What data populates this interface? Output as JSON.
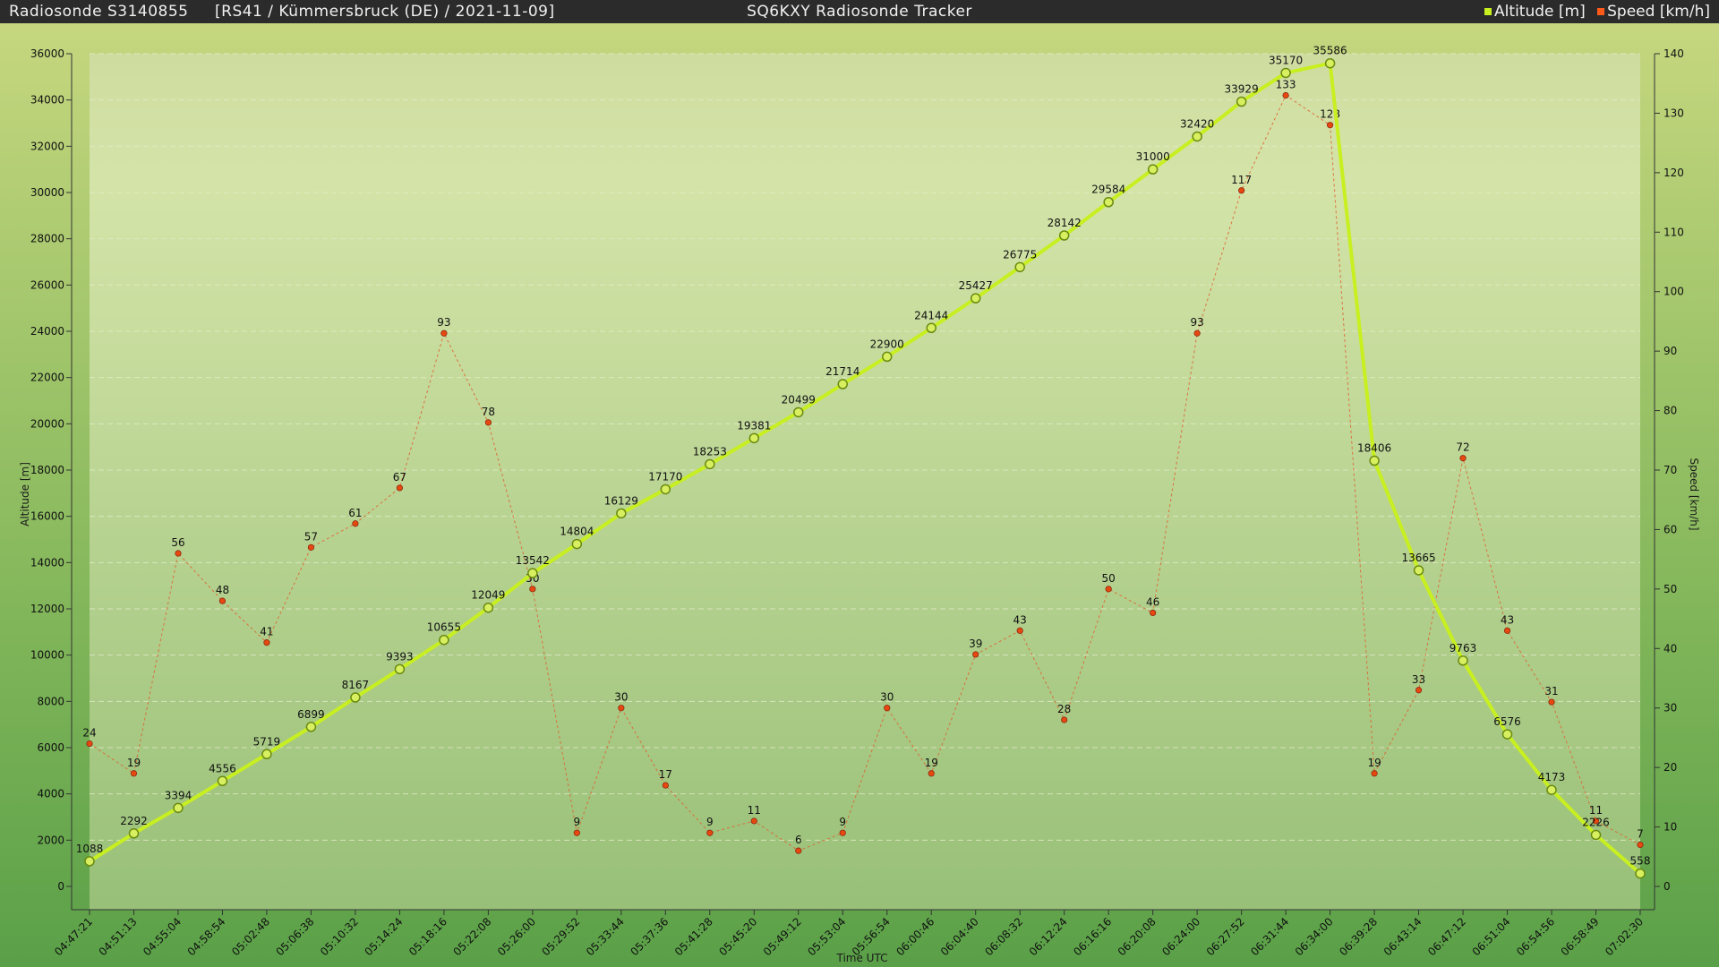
{
  "header": {
    "left": "Radiosonde S3140855",
    "info": "[RS41 / Kümmersbruck (DE) / 2021-11-09]",
    "center": "SQ6KXY Radiosonde Tracker",
    "legend_altitude": "Altitude [m]",
    "legend_speed": "Speed [km/h]"
  },
  "colors": {
    "altitude": "#c8ef20",
    "altitude_marker": "#a8d418",
    "speed": "#e06030",
    "speed_marker": "#e84810"
  },
  "chart_data": {
    "type": "line",
    "title": "SQ6KXY Radiosonde Tracker",
    "xlabel": "Time UTC",
    "ylabel": "Altitude [m]",
    "y2label": "Speed [km/h]",
    "ylim": [
      0,
      36000
    ],
    "y2lim": [
      0,
      140
    ],
    "yticks": [
      0,
      2000,
      4000,
      6000,
      8000,
      10000,
      12000,
      14000,
      16000,
      18000,
      20000,
      22000,
      24000,
      26000,
      28000,
      30000,
      32000,
      34000,
      36000
    ],
    "y2ticks": [
      0,
      10,
      20,
      30,
      40,
      50,
      60,
      70,
      80,
      90,
      100,
      110,
      120,
      130,
      140
    ],
    "grid": true,
    "legend": "top-right",
    "x": [
      "04:47:21",
      "04:51:13",
      "04:55:04",
      "04:58:54",
      "05:02:48",
      "05:06:38",
      "05:10:32",
      "05:14:24",
      "05:18:16",
      "05:22:08",
      "05:26:00",
      "05:29:52",
      "05:33:44",
      "05:37:36",
      "05:41:28",
      "05:45:20",
      "05:49:12",
      "05:53:04",
      "05:56:54",
      "06:00:46",
      "06:04:40",
      "06:08:32",
      "06:12:24",
      "06:16:16",
      "06:20:08",
      "06:24:00",
      "06:27:52",
      "06:31:44",
      "06:34:00",
      "06:39:28",
      "06:43:14",
      "06:47:12",
      "06:51:04",
      "06:54:56",
      "06:58:49",
      "07:02:30"
    ],
    "series": [
      {
        "name": "Altitude [m]",
        "axis": "left",
        "values": [
          1088,
          2292,
          3394,
          4556,
          5719,
          6899,
          8167,
          9393,
          10655,
          12049,
          13542,
          14804,
          16129,
          17170,
          18253,
          19381,
          20499,
          21714,
          22900,
          24144,
          25427,
          26775,
          28142,
          29584,
          31000,
          32420,
          33929,
          35170,
          35586,
          18406,
          13665,
          9763,
          6576,
          4173,
          2226,
          558
        ]
      },
      {
        "name": "Speed [km/h]",
        "axis": "right",
        "values": [
          24,
          19,
          56,
          48,
          41,
          57,
          61,
          67,
          93,
          78,
          50,
          9,
          30,
          17,
          9,
          11,
          6,
          9,
          30,
          19,
          39,
          43,
          28,
          50,
          46,
          93,
          117,
          133,
          128,
          19,
          33,
          72,
          43,
          31,
          11,
          7
        ]
      }
    ]
  }
}
